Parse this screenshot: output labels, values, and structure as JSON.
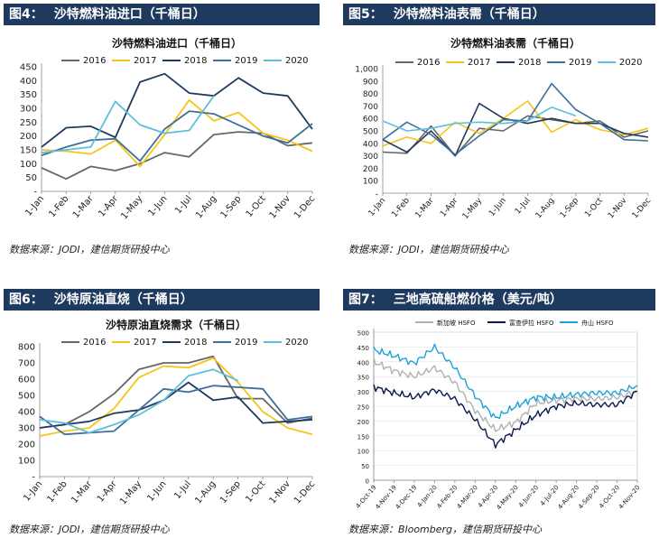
{
  "panels": [
    {
      "fig_label": "图4：",
      "banner_title": "沙特燃料油进口（千桶日）",
      "source": "数据来源：JODI，建信期货研投中心"
    },
    {
      "fig_label": "图5：",
      "banner_title": "沙特燃料油表需（千桶日）",
      "source": "数据来源：JODI，建信期货研投中心"
    },
    {
      "fig_label": "图6：",
      "banner_title": "沙特原油直烧（千桶日）",
      "source": "数据来源：JODI，建信期货研投中心"
    },
    {
      "fig_label": "图7：",
      "banner_title": "三地高硫船燃价格（美元/吨）",
      "source": "数据来源：Bloomberg，建信期货研投中心"
    }
  ],
  "chart_data": [
    {
      "type": "line",
      "title": "沙特燃料油进口（千桶日）",
      "categories": [
        "1-Jan",
        "1-Feb",
        "1-Mar",
        "1-Apr",
        "1-May",
        "1-Jun",
        "1-Jul",
        "1-Aug",
        "1-Sep",
        "1-Oct",
        "1-Nov",
        "1-Dec"
      ],
      "yticks": [
        "-",
        "50",
        "100",
        "150",
        "200",
        "250",
        "300",
        "350",
        "400",
        "450"
      ],
      "ylim": [
        0,
        450
      ],
      "series": [
        {
          "name": "2016",
          "color": "#666666",
          "values": [
            85,
            45,
            90,
            75,
            100,
            140,
            125,
            205,
            215,
            210,
            165,
            175
          ]
        },
        {
          "name": "2017",
          "color": "#f5c518",
          "values": [
            150,
            145,
            135,
            185,
            90,
            205,
            330,
            255,
            285,
            210,
            185,
            145
          ]
        },
        {
          "name": "2018",
          "color": "#1f3a5f",
          "values": [
            160,
            230,
            235,
            195,
            395,
            425,
            355,
            345,
            410,
            355,
            345,
            225
          ]
        },
        {
          "name": "2019",
          "color": "#3f6e9a",
          "values": [
            130,
            160,
            185,
            190,
            110,
            225,
            290,
            280,
            240,
            200,
            175,
            245
          ]
        },
        {
          "name": "2020",
          "color": "#5bc0de",
          "values": [
            140,
            150,
            160,
            325,
            240,
            210,
            220,
            345,
            null,
            null,
            null,
            null
          ]
        }
      ]
    },
    {
      "type": "line",
      "title": "沙特燃料油表需（千桶日）",
      "categories": [
        "1-Jan",
        "1-Feb",
        "1-Mar",
        "1-Apr",
        "1-May",
        "1-Jun",
        "1-Jul",
        "1-Aug",
        "1-Sep",
        "1-Oct",
        "1-Nov",
        "1-Dec"
      ],
      "yticks": [
        "-",
        "100",
        "200",
        "300",
        "400",
        "500",
        "600",
        "700",
        "800",
        "900",
        "1,000"
      ],
      "ylim": [
        0,
        1000
      ],
      "series": [
        {
          "name": "2016",
          "color": "#666666",
          "values": [
            330,
            320,
            540,
            300,
            520,
            500,
            620,
            590,
            560,
            580,
            450,
            500
          ]
        },
        {
          "name": "2017",
          "color": "#f5c518",
          "values": [
            380,
            450,
            400,
            570,
            480,
            600,
            740,
            490,
            590,
            510,
            470,
            520
          ]
        },
        {
          "name": "2018",
          "color": "#1f3a5f",
          "values": [
            430,
            330,
            500,
            300,
            720,
            600,
            560,
            600,
            560,
            560,
            480,
            450
          ]
        },
        {
          "name": "2019",
          "color": "#3f6e9a",
          "values": [
            430,
            570,
            470,
            310,
            460,
            590,
            580,
            880,
            670,
            560,
            430,
            420
          ]
        },
        {
          "name": "2020",
          "color": "#5bc0de",
          "values": [
            580,
            500,
            520,
            560,
            570,
            560,
            580,
            690,
            620,
            null,
            null,
            null
          ]
        }
      ]
    },
    {
      "type": "line",
      "title": "沙特原油直烧需求（千桶日）",
      "categories": [
        "1-Jan",
        "1-Feb",
        "1-Mar",
        "1-Apr",
        "1-May",
        "1-Jun",
        "1-Jul",
        "1-Aug",
        "1-Sep",
        "1-Oct",
        "1-Nov",
        "1-Dec"
      ],
      "yticks": [
        "-",
        "100",
        "200",
        "300",
        "400",
        "500",
        "600",
        "700",
        "800"
      ],
      "ylim": [
        0,
        800
      ],
      "series": [
        {
          "name": "2016",
          "color": "#666666",
          "values": [
            300,
            320,
            400,
            510,
            660,
            700,
            700,
            740,
            480,
            480,
            330,
            360
          ]
        },
        {
          "name": "2017",
          "color": "#f5c518",
          "values": [
            250,
            280,
            300,
            420,
            610,
            680,
            670,
            730,
            580,
            400,
            300,
            260
          ]
        },
        {
          "name": "2018",
          "color": "#1f3a5f",
          "values": [
            300,
            320,
            340,
            390,
            410,
            470,
            580,
            470,
            490,
            330,
            340,
            350
          ]
        },
        {
          "name": "2019",
          "color": "#3f6e9a",
          "values": [
            370,
            260,
            270,
            280,
            410,
            540,
            520,
            560,
            550,
            540,
            350,
            370
          ]
        },
        {
          "name": "2020",
          "color": "#5bc0de",
          "values": [
            350,
            330,
            270,
            320,
            380,
            470,
            620,
            660,
            590,
            null,
            null,
            null
          ]
        }
      ]
    },
    {
      "type": "line",
      "title": "",
      "categories": [
        "4-Oct-19",
        "4-Nov-19",
        "4-Dec-19",
        "4-Jan-20",
        "4-Feb-20",
        "4-Mar-20",
        "4-Apr-20",
        "4-May-20",
        "4-Jun-20",
        "4-Jul-20",
        "4-Aug-20",
        "4-Sep-20",
        "4-Oct-20",
        "4-Nov-20"
      ],
      "yticks": [
        "0",
        "50",
        "100",
        "150",
        "200",
        "250",
        "300",
        "350",
        "400",
        "450",
        "500"
      ],
      "ylim": [
        0,
        500
      ],
      "series": [
        {
          "name": "新加坡 HSFO",
          "color": "#b0b0b0",
          "values": [
            400,
            370,
            350,
            380,
            330,
            235,
            170,
            195,
            260,
            270,
            275,
            275,
            280,
            300
          ]
        },
        {
          "name": "富查伊拉 HSFO",
          "color": "#0a1a4a",
          "values": [
            315,
            295,
            280,
            305,
            275,
            205,
            120,
            170,
            220,
            250,
            260,
            255,
            255,
            300
          ]
        },
        {
          "name": "舟山 HSFO",
          "color": "#1aa3d9",
          "values": [
            440,
            420,
            395,
            450,
            380,
            285,
            210,
            250,
            280,
            280,
            290,
            295,
            295,
            320
          ]
        }
      ]
    }
  ]
}
